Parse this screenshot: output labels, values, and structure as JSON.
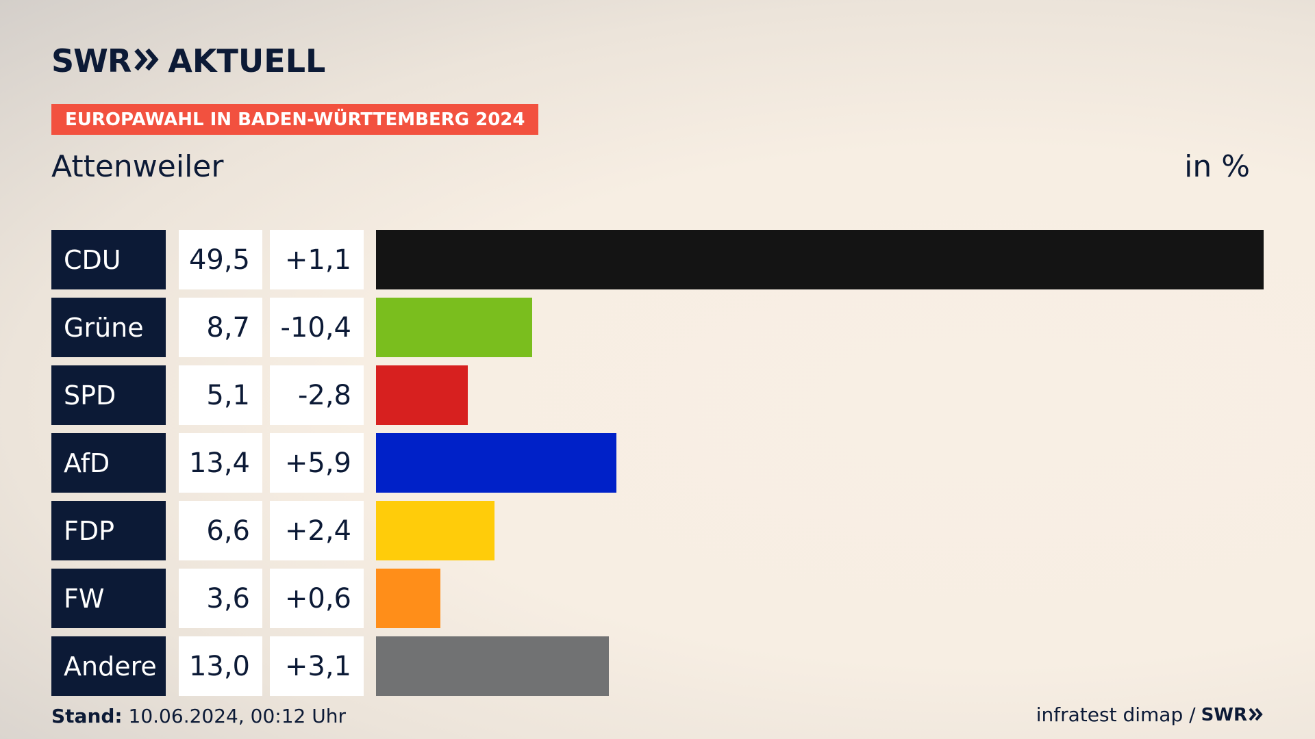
{
  "header": {
    "brand_swr": "SWR",
    "brand_aktuell": "AKTUELL",
    "election_title": "EUROPAWAHL IN BADEN-WÜRTTEMBERG 2024",
    "location": "Attenweiler",
    "unit": "in %"
  },
  "footer": {
    "stand_label": "Stand:",
    "stand_value": "10.06.2024, 00:12 Uhr",
    "source": "infratest dimap /",
    "source_brand": "SWR"
  },
  "colors": {
    "navy": "#0c1a36",
    "badge": "#f2513f"
  },
  "chart_data": {
    "type": "bar",
    "orientation": "horizontal",
    "categories": [
      "CDU",
      "Grüne",
      "SPD",
      "AfD",
      "FDP",
      "FW",
      "Andere"
    ],
    "values": [
      49.5,
      8.7,
      5.1,
      13.4,
      6.6,
      3.6,
      13.0
    ],
    "value_labels": [
      "49,5",
      "8,7",
      "5,1",
      "13,4",
      "6,6",
      "3,6",
      "13,0"
    ],
    "changes": [
      1.1,
      -10.4,
      -2.8,
      5.9,
      2.4,
      0.6,
      3.1
    ],
    "change_labels": [
      "+1,1",
      "-10,4",
      "-2,8",
      "+5,9",
      "+2,4",
      "+0,6",
      "+3,1"
    ],
    "colors": [
      "#141414",
      "#7abe1e",
      "#d7201f",
      "#0021c8",
      "#ffcc0a",
      "#ff8e19",
      "#717273"
    ],
    "xlim": [
      0,
      49.5
    ],
    "title": "",
    "xlabel": "",
    "ylabel": ""
  }
}
